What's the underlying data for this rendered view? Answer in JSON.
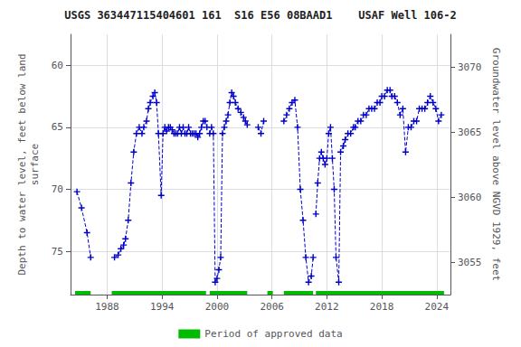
{
  "chart_data": {
    "type": "line",
    "title": "USGS 363447115404601 161  S16 E56 08BAAD1    USAF Well 106-2",
    "ylabel": "Depth to water level, feet below land\nsurface",
    "y2label": "Groundwater level above NGVD 1929, feet",
    "xlim": [
      1984.0,
      2025.5
    ],
    "xticks": [
      1988,
      1994,
      2000,
      2006,
      2012,
      2018,
      2024
    ],
    "ylim": [
      78.5,
      57.5
    ],
    "yticks": [
      60,
      65,
      70,
      75
    ],
    "y2lim": [
      3052.5,
      3072.5
    ],
    "y2ticks": [
      3055,
      3060,
      3065,
      3070
    ],
    "grid": true,
    "series": [
      {
        "color": "#0000cc",
        "marker": "+",
        "line_style": "dashed",
        "x": [
          1984.7,
          1985.2,
          1985.8,
          1986.2
        ],
        "values": [
          70.2,
          71.5,
          73.5,
          75.5
        ]
      },
      {
        "color": "#0000cc",
        "marker": "+",
        "line_style": "dashed",
        "x": [
          1988.8,
          1989.2,
          1989.5,
          1989.8,
          1990.0,
          1990.3,
          1990.6,
          1990.9,
          1991.2,
          1991.5,
          1991.8,
          1992.0,
          1992.3,
          1992.5,
          1992.7,
          1993.0,
          1993.2,
          1993.4,
          1993.6,
          1993.9,
          1994.1,
          1994.3,
          1994.5,
          1994.7,
          1994.9,
          1995.1,
          1995.3,
          1995.5,
          1995.7,
          1995.9,
          1996.1,
          1996.3,
          1996.5,
          1996.7,
          1996.9,
          1997.1,
          1997.3,
          1997.5,
          1997.7,
          1997.9,
          1998.1,
          1998.3,
          1998.5,
          1998.7,
          1998.9
        ],
        "values": [
          75.5,
          75.3,
          74.8,
          74.5,
          74.0,
          72.5,
          69.5,
          67.0,
          65.5,
          65.0,
          65.5,
          65.0,
          64.5,
          63.5,
          63.0,
          62.5,
          62.2,
          63.0,
          65.5,
          70.5,
          65.5,
          65.0,
          65.3,
          65.0,
          65.0,
          65.2,
          65.5,
          65.5,
          65.5,
          65.0,
          65.5,
          65.0,
          65.5,
          65.5,
          65.0,
          65.5,
          65.5,
          65.5,
          65.5,
          65.8,
          65.5,
          65.0,
          64.5,
          64.5,
          65.0
        ]
      },
      {
        "color": "#0000cc",
        "marker": "+",
        "line_style": "dashed",
        "x": [
          1999.2,
          1999.4,
          1999.6,
          1999.8,
          2000.0,
          2000.2,
          2000.4,
          2000.6,
          2000.8,
          2001.0,
          2001.2,
          2001.4,
          2001.6,
          2001.8,
          2002.0,
          2002.3,
          2002.6,
          2002.9,
          2003.1,
          2003.3
        ],
        "values": [
          65.5,
          65.0,
          65.5,
          77.5,
          77.2,
          76.5,
          75.5,
          65.5,
          65.0,
          64.5,
          64.0,
          63.0,
          62.2,
          62.5,
          63.0,
          63.5,
          63.8,
          64.2,
          64.5,
          64.8
        ]
      },
      {
        "color": "#0000cc",
        "marker": "+",
        "line_style": "dashed",
        "x": [
          2004.5,
          2004.8,
          2005.1
        ],
        "values": [
          65.0,
          65.5,
          64.5
        ]
      },
      {
        "color": "#0000cc",
        "marker": "+",
        "line_style": "dashed",
        "x": [
          2007.3,
          2007.6,
          2007.9,
          2008.2,
          2008.5,
          2008.8,
          2009.1,
          2009.4,
          2009.7,
          2010.0,
          2010.3,
          2010.5
        ],
        "values": [
          64.5,
          64.0,
          63.5,
          63.0,
          62.8,
          65.0,
          70.0,
          72.5,
          75.5,
          77.5,
          77.0,
          75.5
        ]
      },
      {
        "color": "#0000cc",
        "marker": "+",
        "line_style": "dashed",
        "x": [
          2010.8,
          2011.0,
          2011.2,
          2011.4,
          2011.6,
          2011.8,
          2012.0,
          2012.2,
          2012.4,
          2012.6,
          2012.8,
          2013.0,
          2013.3,
          2013.5,
          2013.8,
          2014.0,
          2014.3,
          2014.6,
          2014.9,
          2015.1,
          2015.4,
          2015.7,
          2016.0,
          2016.3,
          2016.6,
          2016.9,
          2017.2,
          2017.5,
          2017.8,
          2018.0,
          2018.3,
          2018.6,
          2018.9,
          2019.1,
          2019.4,
          2019.7,
          2020.0,
          2020.3,
          2020.6,
          2020.9,
          2021.2,
          2021.5,
          2021.8,
          2022.1,
          2022.4,
          2022.7,
          2023.0,
          2023.3,
          2023.6,
          2023.9,
          2024.2,
          2024.5
        ],
        "values": [
          72.0,
          69.5,
          67.5,
          67.0,
          67.5,
          68.0,
          67.5,
          65.5,
          65.0,
          67.5,
          70.0,
          75.5,
          77.5,
          67.0,
          66.5,
          66.0,
          65.5,
          65.5,
          65.0,
          65.0,
          64.5,
          64.5,
          64.0,
          64.0,
          63.5,
          63.5,
          63.5,
          63.0,
          63.0,
          62.5,
          62.5,
          62.0,
          62.0,
          62.5,
          62.5,
          63.0,
          64.0,
          63.5,
          67.0,
          65.0,
          65.0,
          64.5,
          64.5,
          63.5,
          63.5,
          63.5,
          63.0,
          62.5,
          63.0,
          63.5,
          64.5,
          64.0
        ]
      }
    ],
    "approved_periods": {
      "name": "Period of approved data",
      "color": "#00bb00",
      "ranges": [
        [
          1984.5,
          1986.2
        ],
        [
          1988.5,
          1998.8
        ],
        [
          1999.2,
          2003.3
        ],
        [
          2005.5,
          2006.1
        ],
        [
          2007.3,
          2010.5
        ],
        [
          2010.8,
          2024.8
        ]
      ]
    }
  }
}
